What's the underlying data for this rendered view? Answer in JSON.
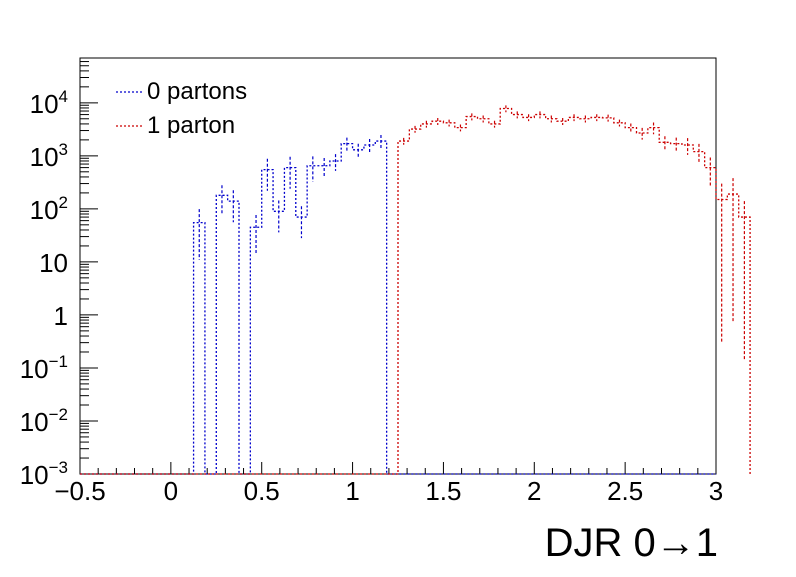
{
  "chart_data": {
    "type": "step-histogram",
    "xlabel": "DJR 0→1",
    "ylabel": "",
    "xlim": [
      -0.5,
      3.0
    ],
    "ylim": [
      0.001,
      70000
    ],
    "yscale": "log",
    "grid": false,
    "legend_placement": "top-left",
    "bin_width": 0.0625,
    "x_ticks": [
      {
        "value": -0.5,
        "label": "−0.5"
      },
      {
        "value": 0,
        "label": "0"
      },
      {
        "value": 0.5,
        "label": "0.5"
      },
      {
        "value": 1,
        "label": "1"
      },
      {
        "value": 1.5,
        "label": "1.5"
      },
      {
        "value": 2,
        "label": "2"
      },
      {
        "value": 2.5,
        "label": "2.5"
      },
      {
        "value": 3,
        "label": "3"
      }
    ],
    "y_ticks": [
      {
        "value": 0.001,
        "base": "10",
        "exp": "−3"
      },
      {
        "value": 0.01,
        "base": "10",
        "exp": "−2"
      },
      {
        "value": 0.1,
        "base": "10",
        "exp": "−1"
      },
      {
        "value": 1,
        "base": "1",
        "exp": ""
      },
      {
        "value": 10,
        "base": "10",
        "exp": ""
      },
      {
        "value": 100,
        "base": "10",
        "exp": "2"
      },
      {
        "value": 1000,
        "base": "10",
        "exp": "3"
      },
      {
        "value": 10000,
        "base": "10",
        "exp": "4"
      }
    ],
    "series": [
      {
        "name": "0 partons",
        "color": "#0000cc",
        "x_start": 0.125,
        "values": [
          55,
          0,
          180,
          140,
          0,
          45,
          550,
          90,
          600,
          70,
          650,
          650,
          800,
          1700,
          1300,
          1600,
          1900
        ],
        "errors_rel": [
          0.8,
          0,
          0.55,
          0.6,
          0,
          0.7,
          0.6,
          0.6,
          0.6,
          0.6,
          0.5,
          0.4,
          0.35,
          0.3,
          0.3,
          0.3,
          0.3
        ]
      },
      {
        "name": "1 parton",
        "color": "#cc0000",
        "x_start": 1.25,
        "values": [
          1900,
          3200,
          4000,
          4500,
          4200,
          3400,
          5500,
          5000,
          4000,
          7800,
          6000,
          5300,
          6000,
          5000,
          4500,
          5300,
          5000,
          5300,
          5200,
          4200,
          3400,
          2700,
          3400,
          1800,
          1700,
          1600,
          1200,
          600,
          150,
          190,
          70
        ],
        "errors_rel": [
          0.15,
          0.15,
          0.15,
          0.15,
          0.15,
          0.15,
          0.15,
          0.15,
          0.15,
          0.15,
          0.15,
          0.15,
          0.15,
          0.15,
          0.15,
          0.15,
          0.15,
          0.15,
          0.15,
          0.15,
          0.2,
          0.25,
          0.25,
          0.3,
          0.3,
          0.35,
          0.4,
          0.55,
          0.998,
          0.996,
          0.998
        ]
      }
    ]
  }
}
